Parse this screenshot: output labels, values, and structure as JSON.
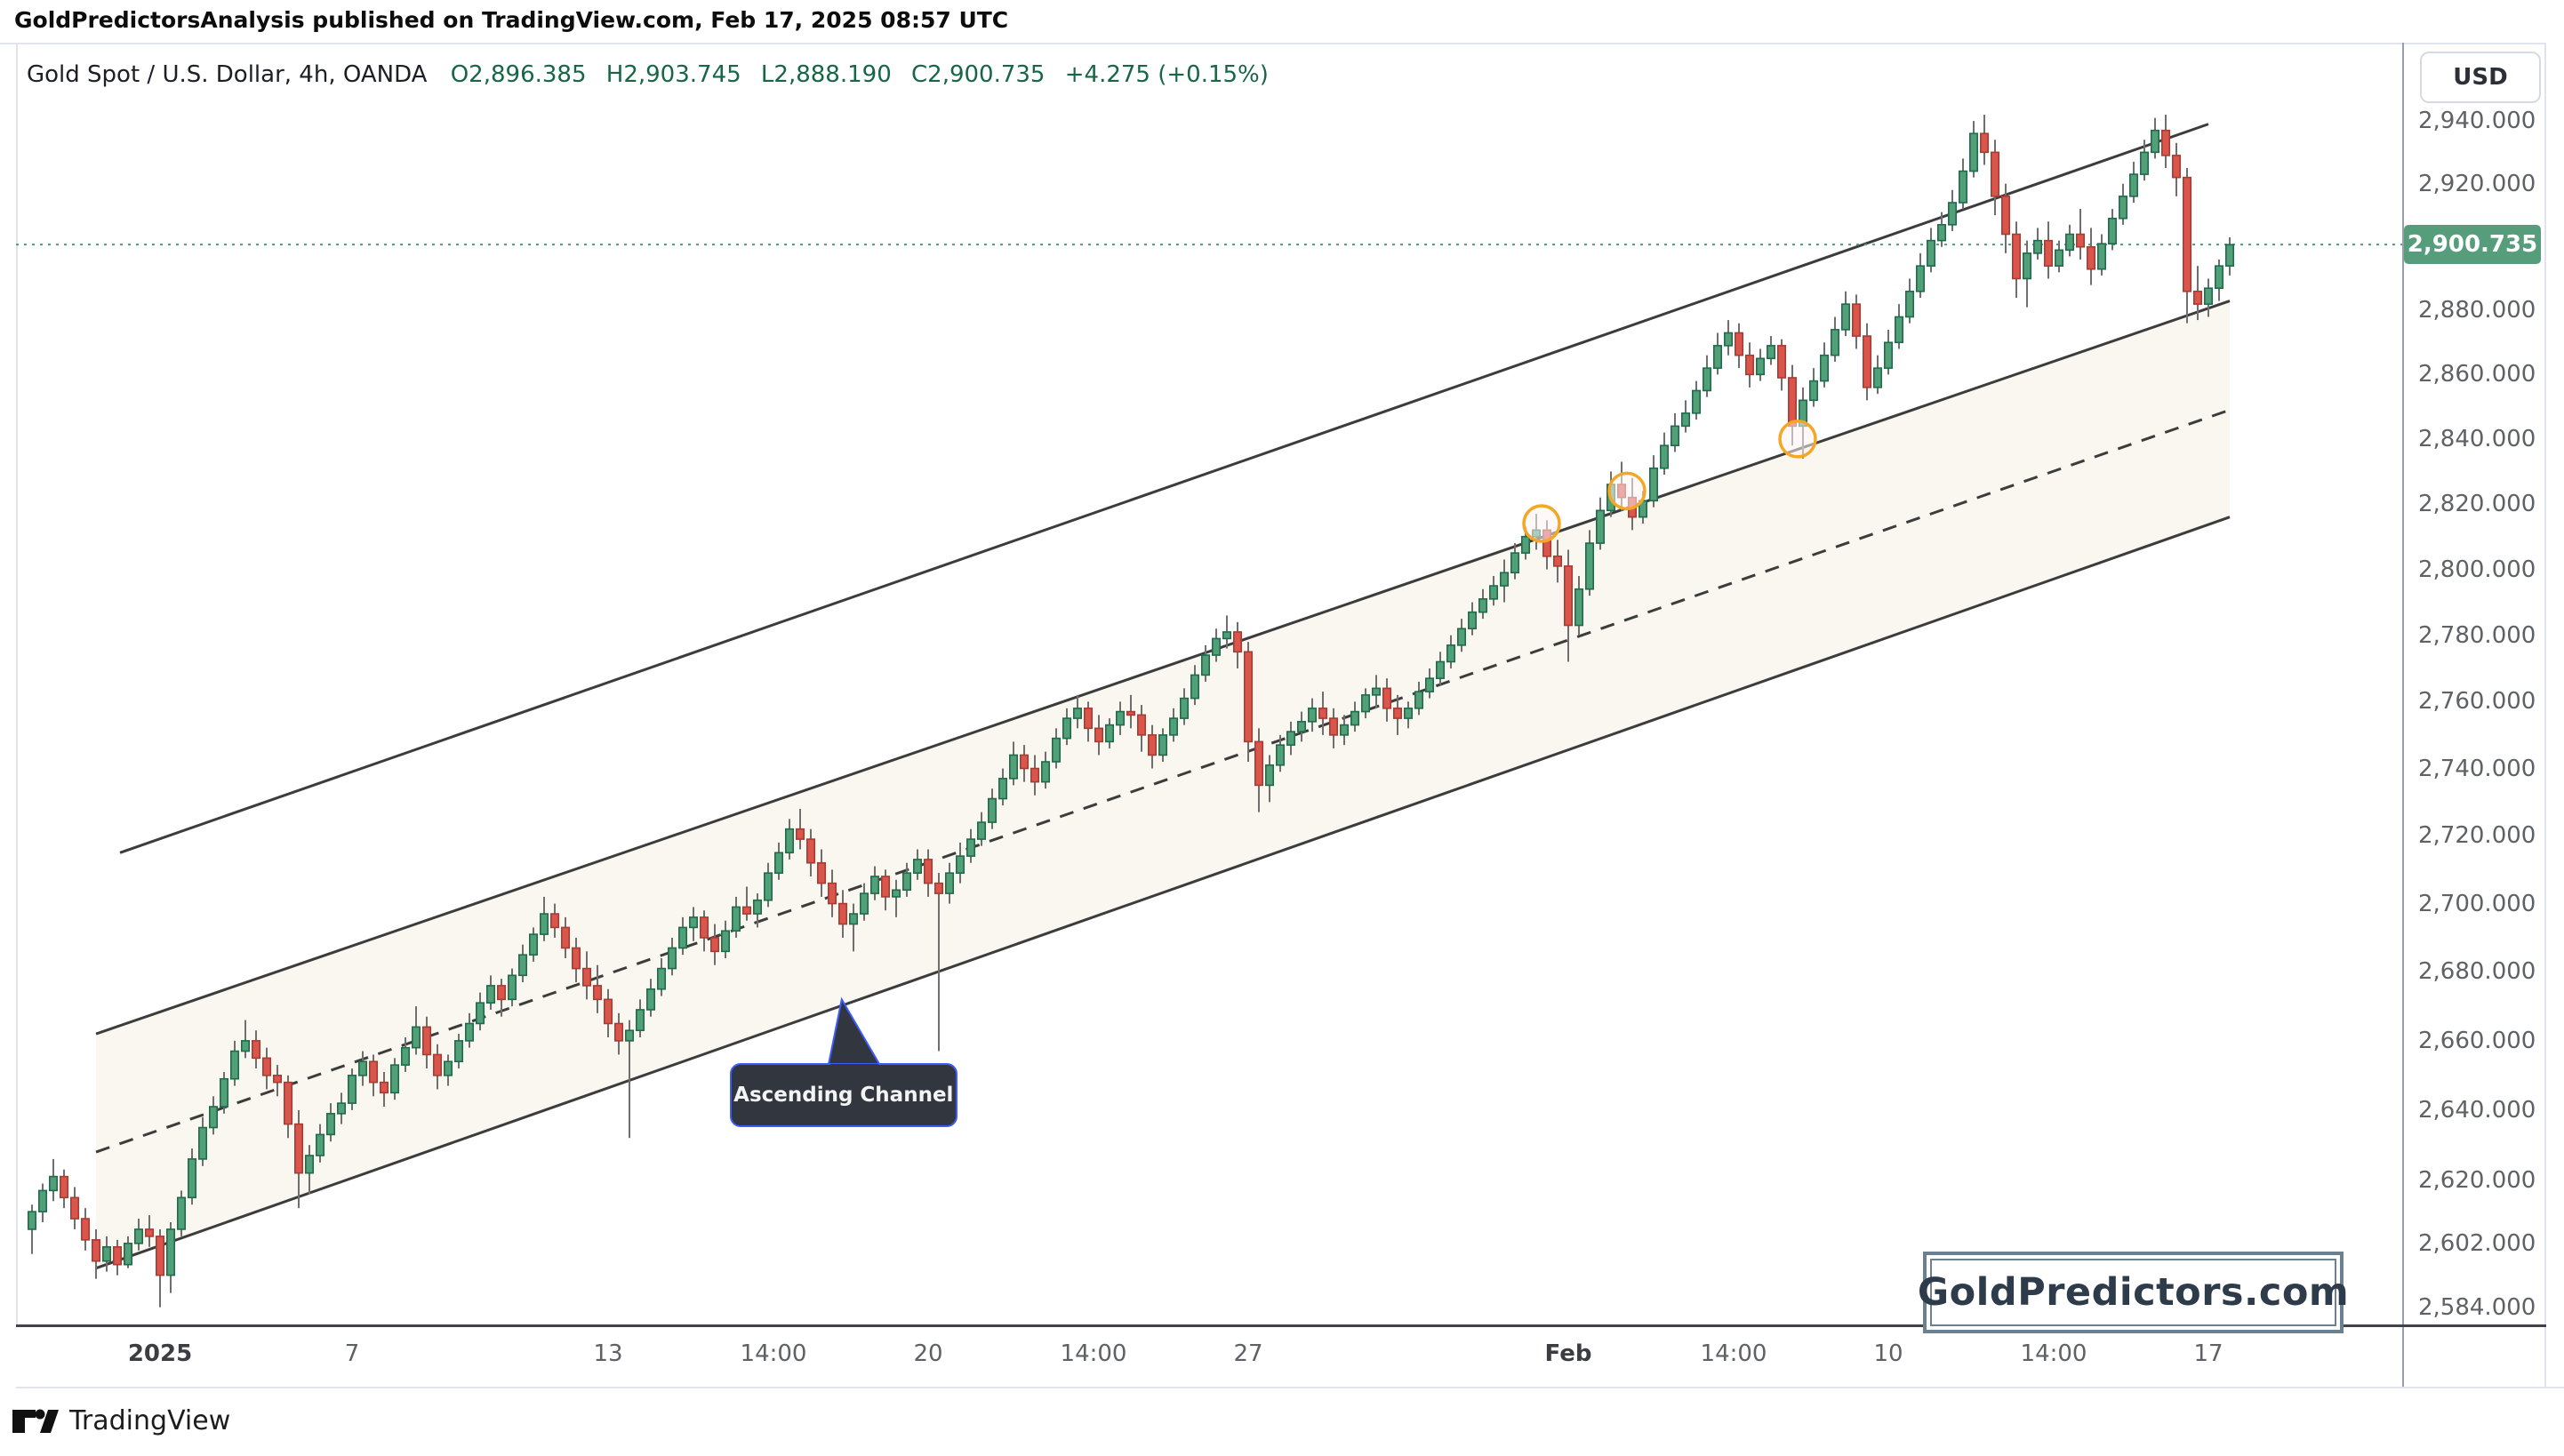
{
  "attribution": "GoldPredictorsAnalysis published on TradingView.com, Feb 17, 2025 08:57 UTC",
  "header": {
    "symbol": "Gold Spot / U.S. Dollar, 4h, OANDA",
    "open": "O2,896.385",
    "high": "H2,903.745",
    "low": "L2,888.190",
    "close": "C2,900.735",
    "change": "+4.275 (+0.15%)"
  },
  "price_axis": {
    "currency": "USD",
    "current": {
      "value": 2900.735,
      "text": "2,900.735"
    },
    "labels": [
      {
        "price": 2940,
        "text": "2,940.000"
      },
      {
        "price": 2920,
        "text": "2,920.000"
      },
      {
        "price": 2880,
        "text": "2,880.000"
      },
      {
        "price": 2860,
        "text": "2,860.000"
      },
      {
        "price": 2840,
        "text": "2,840.000"
      },
      {
        "price": 2820,
        "text": "2,820.000"
      },
      {
        "price": 2800,
        "text": "2,800.000"
      },
      {
        "price": 2780,
        "text": "2,780.000"
      },
      {
        "price": 2760,
        "text": "2,760.000"
      },
      {
        "price": 2740,
        "text": "2,740.000"
      },
      {
        "price": 2720,
        "text": "2,720.000"
      },
      {
        "price": 2700,
        "text": "2,700.000"
      },
      {
        "price": 2680,
        "text": "2,680.000"
      },
      {
        "price": 2660,
        "text": "2,660.000"
      },
      {
        "price": 2640,
        "text": "2,640.000"
      },
      {
        "price": 2620,
        "text": "2,620.000"
      },
      {
        "price": 2602,
        "text": "2,602.000"
      },
      {
        "price": 2584,
        "text": "2,584.000"
      }
    ]
  },
  "time_axis": [
    {
      "text": "2025",
      "bar": 12,
      "major": true
    },
    {
      "text": "7",
      "bar": 30,
      "major": false
    },
    {
      "text": "13",
      "bar": 54,
      "major": false
    },
    {
      "text": "14:00",
      "bar": 69.5,
      "major": false
    },
    {
      "text": "20",
      "bar": 84,
      "major": false
    },
    {
      "text": "14:00",
      "bar": 99.5,
      "major": false
    },
    {
      "text": "27",
      "bar": 114,
      "major": false
    },
    {
      "text": "Feb",
      "bar": 144,
      "major": true
    },
    {
      "text": "14:00",
      "bar": 159.5,
      "major": false
    },
    {
      "text": "10",
      "bar": 174,
      "major": false
    },
    {
      "text": "14:00",
      "bar": 189.5,
      "major": false
    },
    {
      "text": "17",
      "bar": 204,
      "major": false
    }
  ],
  "chart_data": {
    "type": "candlestick",
    "title": "Gold Spot / U.S. Dollar, 4h, OANDA",
    "x_range": "Dec 30 2024 00:00 - Feb 17 2025 08:00, 4-hour bars (values estimated from chart pixels)",
    "y_axis": "USD, log scale, visible range approx 2570-2950",
    "current_price": 2900.735,
    "ohlc": [
      [
        2606,
        2613,
        2599,
        2611
      ],
      [
        2611,
        2619,
        2608,
        2617
      ],
      [
        2617,
        2626,
        2614,
        2621
      ],
      [
        2621,
        2623,
        2612,
        2615
      ],
      [
        2615,
        2618,
        2606,
        2609
      ],
      [
        2609,
        2612,
        2600,
        2603
      ],
      [
        2603,
        2606,
        2592,
        2597
      ],
      [
        2597,
        2604,
        2594,
        2601
      ],
      [
        2601,
        2603,
        2593,
        2596
      ],
      [
        2596,
        2604,
        2595,
        2602
      ],
      [
        2602,
        2609,
        2600,
        2606
      ],
      [
        2606,
        2610,
        2601,
        2604
      ],
      [
        2604,
        2606,
        2584,
        2593
      ],
      [
        2593,
        2608,
        2588,
        2606
      ],
      [
        2606,
        2617,
        2604,
        2615
      ],
      [
        2615,
        2629,
        2613,
        2626
      ],
      [
        2626,
        2638,
        2624,
        2635
      ],
      [
        2635,
        2644,
        2633,
        2641
      ],
      [
        2641,
        2651,
        2639,
        2649
      ],
      [
        2649,
        2660,
        2647,
        2657
      ],
      [
        2657,
        2666,
        2655,
        2660
      ],
      [
        2660,
        2663,
        2652,
        2655
      ],
      [
        2655,
        2658,
        2646,
        2650
      ],
      [
        2650,
        2653,
        2644,
        2648
      ],
      [
        2648,
        2650,
        2632,
        2636
      ],
      [
        2636,
        2640,
        2612,
        2622
      ],
      [
        2622,
        2630,
        2616,
        2627
      ],
      [
        2627,
        2636,
        2625,
        2633
      ],
      [
        2633,
        2642,
        2631,
        2639
      ],
      [
        2639,
        2645,
        2636,
        2642
      ],
      [
        2642,
        2652,
        2640,
        2650
      ],
      [
        2650,
        2657,
        2647,
        2654
      ],
      [
        2654,
        2656,
        2644,
        2648
      ],
      [
        2648,
        2651,
        2641,
        2645
      ],
      [
        2645,
        2655,
        2643,
        2653
      ],
      [
        2653,
        2661,
        2651,
        2658
      ],
      [
        2658,
        2670,
        2656,
        2664
      ],
      [
        2664,
        2667,
        2652,
        2656
      ],
      [
        2656,
        2659,
        2646,
        2650
      ],
      [
        2650,
        2656,
        2647,
        2654
      ],
      [
        2654,
        2662,
        2652,
        2660
      ],
      [
        2660,
        2668,
        2658,
        2665
      ],
      [
        2665,
        2674,
        2663,
        2671
      ],
      [
        2671,
        2679,
        2669,
        2676
      ],
      [
        2676,
        2678,
        2667,
        2672
      ],
      [
        2672,
        2681,
        2670,
        2679
      ],
      [
        2679,
        2688,
        2677,
        2685
      ],
      [
        2685,
        2693,
        2683,
        2691
      ],
      [
        2691,
        2702,
        2689,
        2697
      ],
      [
        2697,
        2700,
        2690,
        2693
      ],
      [
        2693,
        2696,
        2684,
        2687
      ],
      [
        2687,
        2690,
        2677,
        2681
      ],
      [
        2681,
        2686,
        2672,
        2676
      ],
      [
        2676,
        2682,
        2668,
        2672
      ],
      [
        2672,
        2675,
        2661,
        2665
      ],
      [
        2665,
        2668,
        2656,
        2660
      ],
      [
        2660,
        2666,
        2632,
        2663
      ],
      [
        2663,
        2672,
        2661,
        2669
      ],
      [
        2669,
        2678,
        2667,
        2675
      ],
      [
        2675,
        2684,
        2673,
        2681
      ],
      [
        2681,
        2690,
        2679,
        2687
      ],
      [
        2687,
        2696,
        2685,
        2693
      ],
      [
        2693,
        2699,
        2689,
        2696
      ],
      [
        2696,
        2698,
        2686,
        2690
      ],
      [
        2690,
        2694,
        2682,
        2686
      ],
      [
        2686,
        2695,
        2684,
        2692
      ],
      [
        2692,
        2702,
        2690,
        2699
      ],
      [
        2699,
        2705,
        2695,
        2697
      ],
      [
        2697,
        2703,
        2693,
        2701
      ],
      [
        2701,
        2712,
        2699,
        2709
      ],
      [
        2709,
        2718,
        2707,
        2715
      ],
      [
        2715,
        2725,
        2713,
        2722
      ],
      [
        2722,
        2728,
        2716,
        2719
      ],
      [
        2719,
        2722,
        2708,
        2712
      ],
      [
        2712,
        2716,
        2702,
        2706
      ],
      [
        2706,
        2710,
        2696,
        2700
      ],
      [
        2700,
        2704,
        2690,
        2694
      ],
      [
        2694,
        2700,
        2686,
        2697
      ],
      [
        2697,
        2706,
        2695,
        2703
      ],
      [
        2703,
        2711,
        2701,
        2708
      ],
      [
        2708,
        2710,
        2698,
        2702
      ],
      [
        2702,
        2707,
        2696,
        2704
      ],
      [
        2704,
        2712,
        2702,
        2709
      ],
      [
        2709,
        2716,
        2707,
        2713
      ],
      [
        2713,
        2716,
        2702,
        2706
      ],
      [
        2706,
        2709,
        2657,
        2703
      ],
      [
        2703,
        2712,
        2700,
        2709
      ],
      [
        2709,
        2718,
        2706,
        2714
      ],
      [
        2714,
        2722,
        2712,
        2719
      ],
      [
        2719,
        2727,
        2717,
        2724
      ],
      [
        2724,
        2734,
        2722,
        2731
      ],
      [
        2731,
        2740,
        2729,
        2737
      ],
      [
        2737,
        2748,
        2735,
        2744
      ],
      [
        2744,
        2747,
        2736,
        2740
      ],
      [
        2740,
        2744,
        2732,
        2736
      ],
      [
        2736,
        2745,
        2734,
        2742
      ],
      [
        2742,
        2752,
        2740,
        2749
      ],
      [
        2749,
        2758,
        2747,
        2755
      ],
      [
        2755,
        2762,
        2752,
        2758
      ],
      [
        2758,
        2760,
        2748,
        2752
      ],
      [
        2752,
        2756,
        2744,
        2748
      ],
      [
        2748,
        2755,
        2746,
        2753
      ],
      [
        2753,
        2760,
        2750,
        2757
      ],
      [
        2757,
        2762,
        2752,
        2756
      ],
      [
        2756,
        2759,
        2745,
        2750
      ],
      [
        2750,
        2753,
        2740,
        2744
      ],
      [
        2744,
        2752,
        2742,
        2750
      ],
      [
        2750,
        2758,
        2748,
        2755
      ],
      [
        2755,
        2764,
        2753,
        2761
      ],
      [
        2761,
        2771,
        2759,
        2768
      ],
      [
        2768,
        2777,
        2766,
        2774
      ],
      [
        2774,
        2782,
        2772,
        2779
      ],
      [
        2779,
        2786,
        2776,
        2781
      ],
      [
        2781,
        2784,
        2770,
        2775
      ],
      [
        2775,
        2778,
        2742,
        2748
      ],
      [
        2748,
        2752,
        2727,
        2735
      ],
      [
        2735,
        2744,
        2730,
        2741
      ],
      [
        2741,
        2750,
        2739,
        2747
      ],
      [
        2747,
        2754,
        2744,
        2751
      ],
      [
        2751,
        2757,
        2748,
        2754
      ],
      [
        2754,
        2761,
        2751,
        2758
      ],
      [
        2758,
        2763,
        2750,
        2755
      ],
      [
        2755,
        2758,
        2746,
        2750
      ],
      [
        2750,
        2756,
        2747,
        2753
      ],
      [
        2753,
        2760,
        2751,
        2757
      ],
      [
        2757,
        2764,
        2755,
        2762
      ],
      [
        2762,
        2768,
        2758,
        2764
      ],
      [
        2764,
        2767,
        2754,
        2758
      ],
      [
        2758,
        2762,
        2750,
        2755
      ],
      [
        2755,
        2760,
        2752,
        2758
      ],
      [
        2758,
        2766,
        2756,
        2763
      ],
      [
        2763,
        2770,
        2761,
        2767
      ],
      [
        2767,
        2775,
        2765,
        2772
      ],
      [
        2772,
        2780,
        2770,
        2777
      ],
      [
        2777,
        2785,
        2775,
        2782
      ],
      [
        2782,
        2790,
        2780,
        2787
      ],
      [
        2787,
        2794,
        2785,
        2791
      ],
      [
        2791,
        2798,
        2789,
        2795
      ],
      [
        2795,
        2803,
        2790,
        2799
      ],
      [
        2799,
        2808,
        2797,
        2805
      ],
      [
        2805,
        2813,
        2803,
        2810
      ],
      [
        2810,
        2817,
        2806,
        2812
      ],
      [
        2812,
        2815,
        2800,
        2804
      ],
      [
        2804,
        2809,
        2796,
        2801
      ],
      [
        2801,
        2806,
        2772,
        2783
      ],
      [
        2783,
        2798,
        2780,
        2794
      ],
      [
        2794,
        2812,
        2792,
        2808
      ],
      [
        2808,
        2822,
        2806,
        2818
      ],
      [
        2818,
        2830,
        2816,
        2826
      ],
      [
        2826,
        2833,
        2818,
        2822
      ],
      [
        2822,
        2828,
        2812,
        2816
      ],
      [
        2816,
        2824,
        2814,
        2821
      ],
      [
        2821,
        2835,
        2819,
        2831
      ],
      [
        2831,
        2842,
        2829,
        2838
      ],
      [
        2838,
        2848,
        2836,
        2844
      ],
      [
        2844,
        2852,
        2842,
        2848
      ],
      [
        2848,
        2858,
        2846,
        2855
      ],
      [
        2855,
        2866,
        2853,
        2862
      ],
      [
        2862,
        2873,
        2860,
        2869
      ],
      [
        2869,
        2877,
        2866,
        2873
      ],
      [
        2873,
        2876,
        2862,
        2866
      ],
      [
        2866,
        2870,
        2856,
        2860
      ],
      [
        2860,
        2868,
        2858,
        2865
      ],
      [
        2865,
        2872,
        2863,
        2869
      ],
      [
        2869,
        2871,
        2855,
        2859
      ],
      [
        2859,
        2863,
        2838,
        2844
      ],
      [
        2844,
        2856,
        2834,
        2852
      ],
      [
        2852,
        2862,
        2850,
        2858
      ],
      [
        2858,
        2870,
        2856,
        2866
      ],
      [
        2866,
        2878,
        2864,
        2874
      ],
      [
        2874,
        2886,
        2872,
        2882
      ],
      [
        2882,
        2885,
        2868,
        2872
      ],
      [
        2872,
        2876,
        2852,
        2856
      ],
      [
        2856,
        2866,
        2854,
        2862
      ],
      [
        2862,
        2874,
        2860,
        2870
      ],
      [
        2870,
        2882,
        2868,
        2878
      ],
      [
        2878,
        2890,
        2876,
        2886
      ],
      [
        2886,
        2898,
        2884,
        2894
      ],
      [
        2894,
        2906,
        2892,
        2902
      ],
      [
        2902,
        2911,
        2900,
        2907
      ],
      [
        2907,
        2918,
        2905,
        2914
      ],
      [
        2914,
        2928,
        2912,
        2924
      ],
      [
        2924,
        2940,
        2922,
        2936
      ],
      [
        2936,
        2942,
        2926,
        2930
      ],
      [
        2930,
        2934,
        2910,
        2916
      ],
      [
        2916,
        2920,
        2898,
        2904
      ],
      [
        2904,
        2908,
        2884,
        2890
      ],
      [
        2890,
        2902,
        2881,
        2898
      ],
      [
        2898,
        2906,
        2896,
        2902
      ],
      [
        2902,
        2908,
        2890,
        2894
      ],
      [
        2894,
        2902,
        2892,
        2899
      ],
      [
        2899,
        2907,
        2897,
        2904
      ],
      [
        2904,
        2912,
        2896,
        2900
      ],
      [
        2900,
        2906,
        2888,
        2893
      ],
      [
        2893,
        2904,
        2891,
        2901
      ],
      [
        2901,
        2912,
        2899,
        2909
      ],
      [
        2909,
        2920,
        2907,
        2916
      ],
      [
        2916,
        2927,
        2914,
        2923
      ],
      [
        2923,
        2934,
        2921,
        2930
      ],
      [
        2930,
        2941,
        2928,
        2937
      ],
      [
        2937,
        2942,
        2925,
        2929
      ],
      [
        2929,
        2933,
        2916,
        2922
      ],
      [
        2922,
        2925,
        2876,
        2886
      ],
      [
        2886,
        2894,
        2877,
        2882
      ],
      [
        2882,
        2890,
        2878,
        2887
      ],
      [
        2887,
        2896,
        2883,
        2894
      ],
      [
        2894,
        2903,
        2891,
        2900.7
      ]
    ],
    "annotations": {
      "channel_label": "Ascending Channel",
      "upper_trendline": {
        "bar1": 8.25,
        "price1": 2715,
        "bar2": 204,
        "price2": 2939
      },
      "channel_upper": {
        "bar1": 6,
        "price1": 2662,
        "bar2": 206,
        "price2": 2883
      },
      "channel_mid_dashed": {
        "bar1": 6,
        "price1": 2628,
        "bar2": 206,
        "price2": 2849
      },
      "channel_lower": {
        "bar1": 6,
        "price1": 2595,
        "bar2": 206,
        "price2": 2816
      },
      "retest_circles": [
        {
          "bar": 141.5,
          "price": 2814
        },
        {
          "bar": 149.5,
          "price": 2824
        },
        {
          "bar": 165.5,
          "price": 2840
        }
      ],
      "callout_tip": {
        "bar": 75.9,
        "price": 2672
      }
    }
  },
  "watermark": "GoldPredictors.com",
  "brand": {
    "icon": "tv-logo-icon",
    "name": "TradingView"
  },
  "colors": {
    "up_fill": "#52a078",
    "up_border": "#1e6c4b",
    "down_fill": "#da564c",
    "down_border": "#a93b32",
    "wick": "#6f6f6f",
    "channel_line": "#3c3c3c",
    "channel_fill": "#faf7f0",
    "circle_stroke": "#f5a623",
    "price_line": "#4c9d78",
    "badge_bg": "#569d7c",
    "ohlc_green": "#176645",
    "callout_bg": "#32363f",
    "callout_border": "#3c5cff",
    "watermark_border": "#6b8091",
    "watermark_text": "#2d3b4a"
  }
}
